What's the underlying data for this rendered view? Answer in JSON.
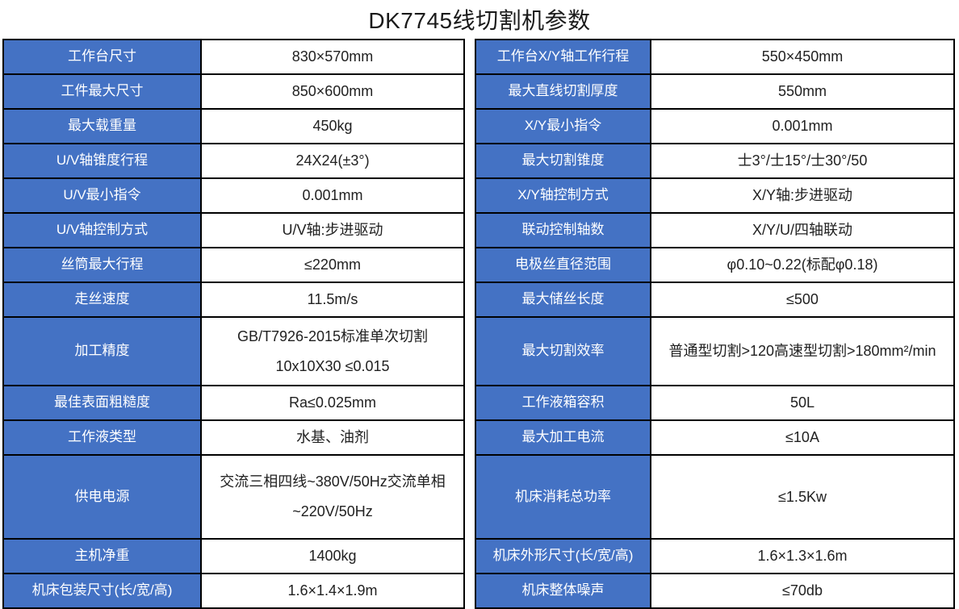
{
  "title": "DK7745线切割机参数",
  "colors": {
    "header_blue": "#4472C4",
    "border": "#000000",
    "label_text": "#ffffff",
    "value_text": "#212121"
  },
  "table": {
    "left_rows": [
      {
        "label": "工作台尺寸",
        "value": "830×570mm"
      },
      {
        "label": "工件最大尺寸",
        "value": "850×600mm"
      },
      {
        "label": "最大载重量",
        "value": "450kg"
      },
      {
        "label": "U/V轴锥度行程",
        "value": "24X24(±3°)"
      },
      {
        "label": "U/V最小指令",
        "value": "0.001mm"
      },
      {
        "label": "U/V轴控制方式",
        "value": "U/V轴:步进驱动"
      },
      {
        "label": "丝筒最大行程",
        "value": "≤220mm"
      },
      {
        "label": "走丝速度",
        "value": "11.5m/s"
      },
      {
        "label": "加工精度",
        "value": "GB/T7926-2015标准单次切割\n10x10X30 ≤0.015"
      },
      {
        "label": "最佳表面粗糙度",
        "value": "Ra≤0.025mm"
      },
      {
        "label": "工作液类型",
        "value": "水基、油剂"
      },
      {
        "label": "供电电源",
        "value": "交流三相四线~380V/50Hz交流单相\n~220V/50Hz"
      },
      {
        "label": "主机净重",
        "value": "1400kg"
      },
      {
        "label": "机床包装尺寸(长/宽/高)",
        "value": "1.6×1.4×1.9m"
      }
    ],
    "right_rows": [
      {
        "label": "工作台X/Y轴工作行程",
        "value": "550×450mm"
      },
      {
        "label": "最大直线切割厚度",
        "value": "550mm"
      },
      {
        "label": "X/Y最小指令",
        "value": "0.001mm"
      },
      {
        "label": "最大切割锥度",
        "value": "士3°/士15°/士30°/50"
      },
      {
        "label": "X/Y轴控制方式",
        "value": "X/Y轴:步进驱动"
      },
      {
        "label": "联动控制轴数",
        "value": "X/Y/U/四轴联动"
      },
      {
        "label": "电极丝直径范围",
        "value": "φ0.10~0.22(标配φ0.18)"
      },
      {
        "label": "最大储丝长度",
        "value": "≤500"
      },
      {
        "label": "最大切割效率",
        "value": "普通型切割>120高速型切割>180mm²/min"
      },
      {
        "label": "工作液箱容积",
        "value": "50L"
      },
      {
        "label": "最大加工电流",
        "value": "≤10A"
      },
      {
        "label": "机床消耗总功率",
        "value": "≤1.5Kw"
      },
      {
        "label": "机床外形尺寸(长/宽/高)",
        "value": "1.6×1.3×1.6m"
      },
      {
        "label": "机床整体噪声",
        "value": "≤70db"
      }
    ]
  }
}
